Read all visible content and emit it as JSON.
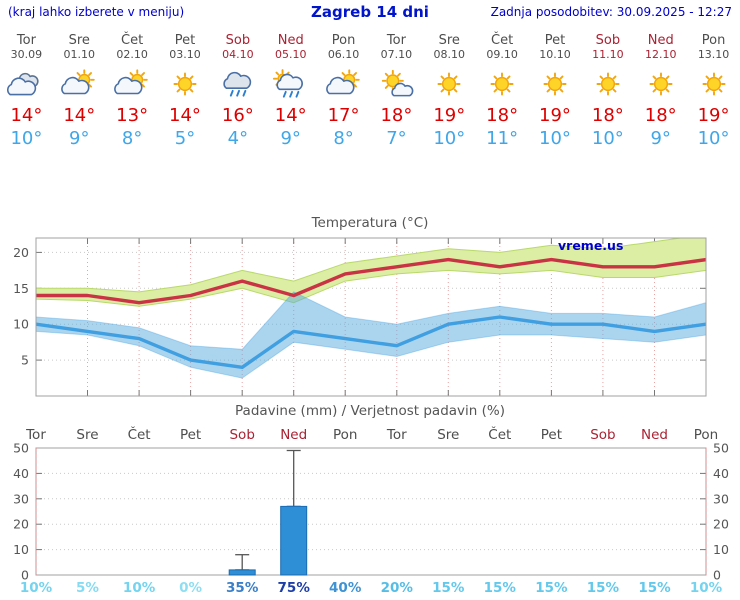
{
  "header": {
    "left_note": "(kraj lahko izberete v meniju)",
    "title": "Zagreb 14 dni",
    "updated": "Zadnja posodobitev: 30.09.2025 - 12:27"
  },
  "days": [
    {
      "name": "Tor",
      "date": "30.09",
      "weekend": false,
      "icon": "cloudy",
      "tmax": "14°",
      "tmin": "10°",
      "prob": "10%",
      "prob_color": "#74d4ef"
    },
    {
      "name": "Sre",
      "date": "01.10",
      "weekend": false,
      "icon": "partly-cloudy",
      "tmax": "14°",
      "tmin": "9°",
      "prob": "5%",
      "prob_color": "#85dbf2"
    },
    {
      "name": "Čet",
      "date": "02.10",
      "weekend": false,
      "icon": "partly-cloudy",
      "tmax": "13°",
      "tmin": "8°",
      "prob": "10%",
      "prob_color": "#74d4ef"
    },
    {
      "name": "Pet",
      "date": "03.10",
      "weekend": false,
      "icon": "sunny",
      "tmax": "14°",
      "tmin": "5°",
      "prob": "0%",
      "prob_color": "#8edef3"
    },
    {
      "name": "Sob",
      "date": "04.10",
      "weekend": true,
      "icon": "rain",
      "tmax": "16°",
      "tmin": "4°",
      "prob": "35%",
      "prob_color": "#3a7fc9"
    },
    {
      "name": "Ned",
      "date": "05.10",
      "weekend": true,
      "icon": "sun-showers",
      "tmax": "14°",
      "tmin": "9°",
      "prob": "75%",
      "prob_color": "#1e3ea8"
    },
    {
      "name": "Pon",
      "date": "06.10",
      "weekend": false,
      "icon": "partly-cloudy",
      "tmax": "17°",
      "tmin": "8°",
      "prob": "40%",
      "prob_color": "#3f93d4"
    },
    {
      "name": "Tor",
      "date": "07.10",
      "weekend": false,
      "icon": "mostly-sunny",
      "tmax": "18°",
      "tmin": "7°",
      "prob": "20%",
      "prob_color": "#55bde6"
    },
    {
      "name": "Sre",
      "date": "08.10",
      "weekend": false,
      "icon": "sunny",
      "tmax": "19°",
      "tmin": "10°",
      "prob": "15%",
      "prob_color": "#63c9ec"
    },
    {
      "name": "Čet",
      "date": "09.10",
      "weekend": false,
      "icon": "sunny",
      "tmax": "18°",
      "tmin": "11°",
      "prob": "15%",
      "prob_color": "#63c9ec"
    },
    {
      "name": "Pet",
      "date": "10.10",
      "weekend": false,
      "icon": "sunny",
      "tmax": "19°",
      "tmin": "10°",
      "prob": "15%",
      "prob_color": "#63c9ec"
    },
    {
      "name": "Sob",
      "date": "11.10",
      "weekend": true,
      "icon": "sunny",
      "tmax": "18°",
      "tmin": "10°",
      "prob": "15%",
      "prob_color": "#63c9ec"
    },
    {
      "name": "Ned",
      "date": "12.10",
      "weekend": true,
      "icon": "sunny",
      "tmax": "18°",
      "tmin": "9°",
      "prob": "15%",
      "prob_color": "#63c9ec"
    },
    {
      "name": "Pon",
      "date": "13.10",
      "weekend": false,
      "icon": "sunny",
      "tmax": "19°",
      "tmin": "10°",
      "prob": "10%",
      "prob_color": "#74d4ef"
    }
  ],
  "colors": {
    "header_text": "#0000cc",
    "weekday": "#4d4d4d",
    "weekend": "#aa2233",
    "tmax": "#dd0000",
    "tmin": "#3fa6e8",
    "chart_text": "#555555",
    "red_line": "#c93344",
    "green_band": "#dceda4",
    "green_edge": "#b9d96b",
    "blue_band": "#58ace0",
    "blue_line": "#3f9fe0",
    "bar_fill": "#2e8ed6",
    "bar_edge": "#1b6cb2",
    "grid_h": "#c9c9c9",
    "grid_v": "#e8a3a3",
    "grid_edge_red": "#e08a8a",
    "border": "#a0a0a0",
    "watermark": "#0000cc"
  },
  "chart_data": [
    {
      "type": "line",
      "title": "Temperatura (°C)",
      "watermark": "vreme.us",
      "x_labels": [
        "Tor",
        "Sre",
        "Čet",
        "Pet",
        "Sob",
        "Ned",
        "Pon",
        "Tor",
        "Sre",
        "Čet",
        "Pet",
        "Sob",
        "Ned",
        "Pon"
      ],
      "ylim": [
        0,
        22
      ],
      "yticks": [
        5,
        10,
        15,
        20
      ],
      "series": [
        {
          "name": "tmax",
          "values": [
            14,
            14,
            13,
            14,
            16,
            14,
            17,
            18,
            19,
            18,
            19,
            18,
            18,
            19
          ]
        },
        {
          "name": "tmin",
          "values": [
            10,
            9,
            8,
            5,
            4,
            9,
            8,
            7,
            10,
            11,
            10,
            10,
            9,
            10
          ]
        },
        {
          "name": "tmax_band_upper",
          "values": [
            15,
            15,
            14.5,
            15.5,
            17.5,
            16,
            18.5,
            19.5,
            20.5,
            20,
            21,
            20.5,
            21.5,
            22.5
          ]
        },
        {
          "name": "tmax_band_lower",
          "values": [
            13.5,
            13.3,
            12.5,
            13.5,
            15,
            13,
            16,
            17,
            17.5,
            17,
            17.5,
            16.5,
            16.5,
            17.5
          ]
        },
        {
          "name": "tmin_band_upper",
          "values": [
            11,
            10.5,
            9.5,
            7,
            6.5,
            14.5,
            11,
            10,
            11.5,
            12.5,
            11.5,
            11.5,
            11,
            13
          ]
        },
        {
          "name": "tmin_band_lower",
          "values": [
            9,
            8.5,
            7,
            4,
            2.5,
            7.5,
            6.5,
            5.5,
            7.5,
            8.5,
            8.5,
            8,
            7.5,
            8.5
          ]
        }
      ],
      "grid": true,
      "legend": "none"
    },
    {
      "type": "bar",
      "title": "Padavine (mm) / Verjetnost padavin (%)",
      "categories": [
        "Tor",
        "Sre",
        "Čet",
        "Pet",
        "Sob",
        "Ned",
        "Pon",
        "Tor",
        "Sre",
        "Čet",
        "Pet",
        "Sob",
        "Ned",
        "Pon"
      ],
      "values": [
        0,
        0,
        0,
        0,
        2,
        27,
        0,
        0,
        0,
        0,
        0,
        0,
        0,
        0
      ],
      "whisker_high": [
        0,
        0,
        0,
        0,
        8,
        49,
        0,
        0,
        0,
        0,
        0,
        0,
        0,
        0
      ],
      "probabilities_pct": [
        10,
        5,
        10,
        0,
        35,
        75,
        40,
        20,
        15,
        15,
        15,
        15,
        15,
        10
      ],
      "ylim": [
        0,
        52
      ],
      "yticks": [
        0,
        10,
        20,
        30,
        40,
        50
      ],
      "grid": true,
      "legend": "none"
    }
  ]
}
